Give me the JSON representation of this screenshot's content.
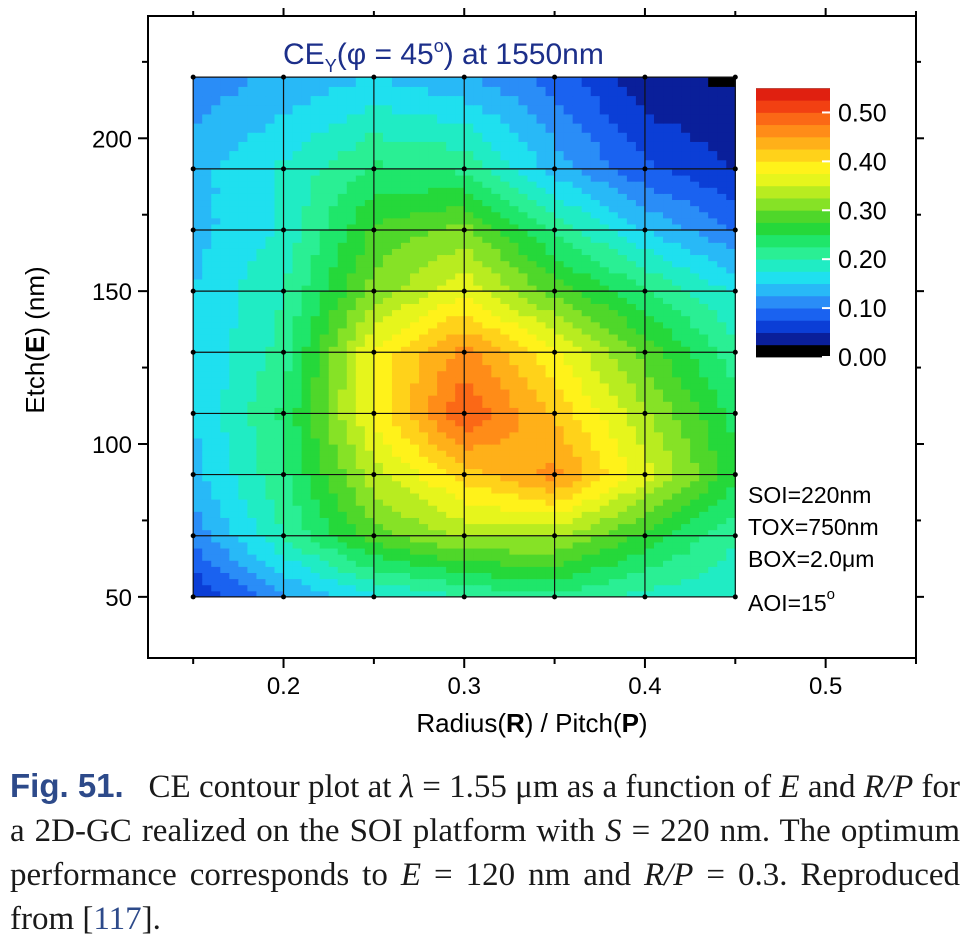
{
  "chart_data": {
    "type": "heatmap",
    "title": "CE_Y(φ = 45°) at 1550nm",
    "title_parts": {
      "main": "CE",
      "sub": "Y",
      "rest": "(φ = 45",
      "deg": "o",
      "tail": ") at  1550nm"
    },
    "xlabel_parts": [
      "Radius(",
      "R",
      ") / Pitch(",
      "P",
      ")"
    ],
    "ylabel_parts": [
      "Etch(",
      "E",
      ") (nm)"
    ],
    "xlim": [
      0.125,
      0.55
    ],
    "ylim": [
      30,
      240
    ],
    "xticks": [
      0.2,
      0.3,
      0.4,
      0.5
    ],
    "xtick_labels": [
      "0.2",
      "0.3",
      "0.4",
      "0.5"
    ],
    "yticks": [
      50,
      100,
      150,
      200
    ],
    "ytick_labels": [
      "50",
      "100",
      "150",
      "200"
    ],
    "x": [
      0.15,
      0.2,
      0.25,
      0.3,
      0.35,
      0.4,
      0.45
    ],
    "y": [
      50,
      70,
      90,
      110,
      130,
      150,
      170,
      190,
      220
    ],
    "z": [
      [
        0.05,
        0.12,
        0.17,
        0.2,
        0.22,
        0.19,
        0.18
      ],
      [
        0.11,
        0.2,
        0.29,
        0.33,
        0.33,
        0.27,
        0.2
      ],
      [
        0.14,
        0.22,
        0.34,
        0.41,
        0.46,
        0.36,
        0.26
      ],
      [
        0.15,
        0.23,
        0.38,
        0.5,
        0.42,
        0.33,
        0.24
      ],
      [
        0.15,
        0.21,
        0.38,
        0.46,
        0.38,
        0.29,
        0.21
      ],
      [
        0.15,
        0.2,
        0.31,
        0.37,
        0.29,
        0.23,
        0.17
      ],
      [
        0.14,
        0.18,
        0.28,
        0.31,
        0.22,
        0.15,
        0.1
      ],
      [
        0.14,
        0.18,
        0.23,
        0.22,
        0.14,
        0.08,
        0.05
      ],
      [
        0.11,
        0.13,
        0.15,
        0.13,
        0.09,
        0.03,
        0.02
      ]
    ],
    "colorbar": {
      "min": 0.0,
      "max": 0.55,
      "step": 0.025,
      "tick_values": [
        0.5,
        0.4,
        0.3,
        0.2,
        0.1,
        0.0
      ],
      "tick_labels": [
        "0.50",
        "0.40",
        "0.30",
        "0.20",
        "0.10",
        "0.00"
      ],
      "colors": [
        "#000000",
        "#0a1f9a",
        "#0b3ed6",
        "#1a62f0",
        "#2a8df7",
        "#28b9f7",
        "#1fe0ef",
        "#20ecc4",
        "#2aef94",
        "#1fe66a",
        "#25d83a",
        "#4fd72a",
        "#86e226",
        "#b8ec20",
        "#e6f51c",
        "#fff21a",
        "#ffd21a",
        "#ffb019",
        "#ff8c18",
        "#fb6816",
        "#f24012",
        "#e02010",
        "#8c8c8c"
      ]
    },
    "annotations": [
      "SOI=220nm",
      "TOX=750nm",
      "BOX=2.0",
      "μm",
      "AOI=15",
      "o"
    ],
    "grid": false,
    "legend": "colorbar top-right"
  },
  "caption": {
    "label": "Fig. 51.",
    "text_1": "CE contour plot at ",
    "lambda": "λ",
    "text_2": " = 1.55 μm as a function of ",
    "E": "E",
    "text_3": " and ",
    "RP": "R/P",
    "text_4": " for a 2D-GC realized on the SOI platform with ",
    "S": "S",
    "text_5": " = 220 nm. The optimum performance corresponds to ",
    "E2": "E",
    "text_6": " = 120 nm and ",
    "RP2": "R/P",
    "text_7": " = 0.3. Reproduced from [",
    "ref": "117",
    "text_8": "]."
  }
}
